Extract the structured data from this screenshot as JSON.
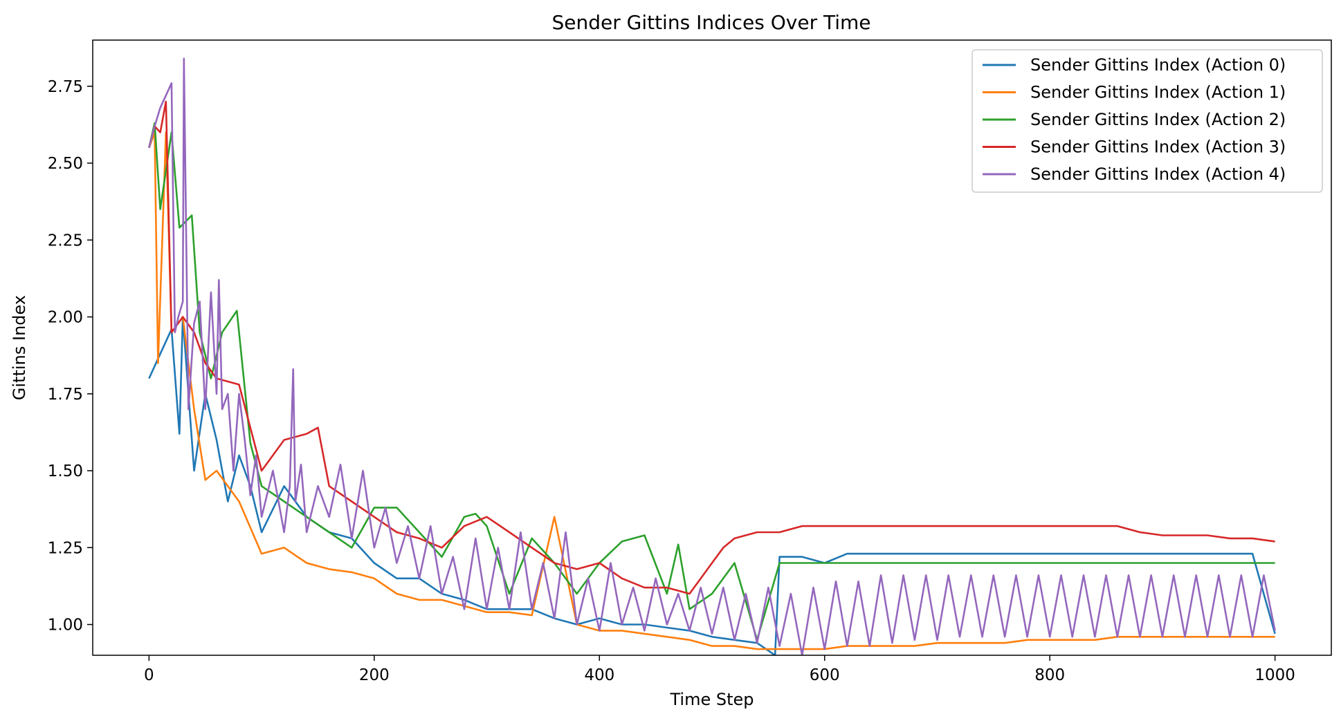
{
  "chart_data": {
    "type": "line",
    "title": "Sender Gittins Indices Over Time",
    "xlabel": "Time Step",
    "ylabel": "Gittins Index",
    "xlim": [
      -50,
      1050
    ],
    "ylim": [
      0.9,
      2.9
    ],
    "xticks": [
      0,
      200,
      400,
      600,
      800,
      1000
    ],
    "yticks": [
      1.0,
      1.25,
      1.5,
      1.75,
      2.0,
      2.25,
      2.5,
      2.75
    ],
    "xtick_labels": [
      "0",
      "200",
      "400",
      "600",
      "800",
      "1000"
    ],
    "ytick_labels": [
      "1.00",
      "1.25",
      "1.50",
      "1.75",
      "2.00",
      "2.25",
      "2.50",
      "2.75"
    ],
    "grid": false,
    "legend_position": "top-right",
    "series": [
      {
        "name": "Sender Gittins Index (Action 0)",
        "color": "#1f77b4",
        "x": [
          0,
          10,
          20,
          27,
          30,
          40,
          50,
          60,
          70,
          80,
          90,
          100,
          120,
          140,
          160,
          180,
          200,
          220,
          240,
          260,
          280,
          300,
          320,
          340,
          360,
          380,
          400,
          420,
          440,
          460,
          480,
          500,
          520,
          540,
          556,
          560,
          580,
          600,
          620,
          640,
          660,
          680,
          700,
          720,
          740,
          760,
          780,
          800,
          820,
          840,
          860,
          880,
          900,
          920,
          940,
          960,
          980,
          1000
        ],
        "y": [
          1.8,
          1.88,
          1.96,
          1.62,
          2.0,
          1.5,
          1.75,
          1.6,
          1.4,
          1.55,
          1.45,
          1.3,
          1.45,
          1.35,
          1.3,
          1.28,
          1.2,
          1.15,
          1.15,
          1.1,
          1.08,
          1.05,
          1.05,
          1.05,
          1.02,
          1.0,
          1.02,
          1.0,
          1.0,
          0.99,
          0.98,
          0.96,
          0.95,
          0.94,
          0.9,
          1.22,
          1.22,
          1.2,
          1.23,
          1.23,
          1.23,
          1.23,
          1.23,
          1.23,
          1.23,
          1.23,
          1.23,
          1.23,
          1.23,
          1.23,
          1.23,
          1.23,
          1.23,
          1.23,
          1.23,
          1.23,
          1.23,
          0.97
        ]
      },
      {
        "name": "Sender Gittins Index (Action 1)",
        "color": "#ff7f0e",
        "x": [
          0,
          5,
          8,
          15,
          20,
          30,
          40,
          50,
          60,
          80,
          100,
          120,
          140,
          160,
          180,
          200,
          220,
          240,
          260,
          280,
          300,
          320,
          340,
          360,
          380,
          400,
          420,
          440,
          460,
          480,
          500,
          520,
          540,
          560,
          580,
          600,
          620,
          640,
          660,
          680,
          700,
          720,
          740,
          760,
          780,
          800,
          820,
          840,
          860,
          880,
          900,
          920,
          940,
          960,
          980,
          1000
        ],
        "y": [
          2.55,
          2.6,
          1.85,
          2.6,
          1.95,
          2.0,
          1.7,
          1.47,
          1.5,
          1.4,
          1.23,
          1.25,
          1.2,
          1.18,
          1.17,
          1.15,
          1.1,
          1.08,
          1.08,
          1.06,
          1.04,
          1.04,
          1.03,
          1.35,
          1.0,
          0.98,
          0.98,
          0.97,
          0.96,
          0.95,
          0.93,
          0.93,
          0.92,
          0.92,
          0.92,
          0.92,
          0.93,
          0.93,
          0.93,
          0.93,
          0.94,
          0.94,
          0.94,
          0.94,
          0.95,
          0.95,
          0.95,
          0.95,
          0.96,
          0.96,
          0.96,
          0.96,
          0.96,
          0.96,
          0.96,
          0.96
        ]
      },
      {
        "name": "Sender Gittins Index (Action 2)",
        "color": "#2ca02c",
        "x": [
          0,
          5,
          10,
          20,
          27,
          38,
          45,
          55,
          65,
          78,
          90,
          100,
          120,
          140,
          160,
          180,
          200,
          220,
          240,
          260,
          280,
          290,
          300,
          320,
          340,
          360,
          380,
          400,
          420,
          440,
          460,
          470,
          480,
          500,
          520,
          540,
          560,
          580,
          600,
          620,
          640,
          660,
          680,
          700,
          720,
          740,
          760,
          780,
          800,
          820,
          840,
          860,
          880,
          900,
          920,
          940,
          960,
          980,
          1000
        ],
        "y": [
          2.55,
          2.63,
          2.35,
          2.6,
          2.29,
          2.33,
          1.95,
          1.8,
          1.95,
          2.02,
          1.59,
          1.45,
          1.4,
          1.35,
          1.3,
          1.25,
          1.38,
          1.38,
          1.3,
          1.22,
          1.35,
          1.36,
          1.32,
          1.1,
          1.28,
          1.2,
          1.1,
          1.2,
          1.27,
          1.29,
          1.1,
          1.26,
          1.05,
          1.1,
          1.2,
          0.95,
          1.2,
          1.2,
          1.2,
          1.2,
          1.2,
          1.2,
          1.2,
          1.2,
          1.2,
          1.2,
          1.2,
          1.2,
          1.2,
          1.2,
          1.2,
          1.2,
          1.2,
          1.2,
          1.2,
          1.2,
          1.2,
          1.2,
          1.2
        ]
      },
      {
        "name": "Sender Gittins Index (Action 3)",
        "color": "#d62728",
        "x": [
          0,
          5,
          10,
          15,
          20,
          30,
          40,
          50,
          60,
          80,
          100,
          120,
          140,
          150,
          160,
          180,
          200,
          220,
          240,
          260,
          280,
          300,
          320,
          340,
          360,
          380,
          400,
          420,
          440,
          460,
          480,
          500,
          510,
          520,
          540,
          560,
          580,
          600,
          620,
          640,
          660,
          680,
          700,
          720,
          740,
          760,
          780,
          800,
          820,
          840,
          860,
          880,
          900,
          920,
          940,
          960,
          980,
          1000
        ],
        "y": [
          2.55,
          2.62,
          2.6,
          2.7,
          1.95,
          2.0,
          1.95,
          1.85,
          1.8,
          1.78,
          1.5,
          1.6,
          1.62,
          1.64,
          1.45,
          1.4,
          1.35,
          1.3,
          1.28,
          1.25,
          1.32,
          1.35,
          1.3,
          1.25,
          1.2,
          1.18,
          1.2,
          1.15,
          1.12,
          1.12,
          1.1,
          1.2,
          1.25,
          1.28,
          1.3,
          1.3,
          1.32,
          1.32,
          1.32,
          1.32,
          1.32,
          1.32,
          1.32,
          1.32,
          1.32,
          1.32,
          1.32,
          1.32,
          1.32,
          1.32,
          1.32,
          1.3,
          1.29,
          1.29,
          1.29,
          1.28,
          1.28,
          1.27
        ]
      },
      {
        "name": "Sender Gittins Index (Action 4)",
        "color": "#9467bd",
        "x": [
          0,
          5,
          10,
          15,
          20,
          23,
          26,
          30,
          31,
          35,
          40,
          45,
          50,
          55,
          60,
          62,
          65,
          70,
          75,
          80,
          85,
          90,
          95,
          100,
          110,
          120,
          125,
          128,
          130,
          135,
          140,
          150,
          160,
          170,
          180,
          190,
          200,
          210,
          220,
          230,
          240,
          250,
          260,
          270,
          280,
          290,
          300,
          310,
          320,
          330,
          340,
          350,
          360,
          370,
          380,
          390,
          400,
          410,
          420,
          430,
          440,
          450,
          460,
          470,
          480,
          490,
          500,
          510,
          520,
          530,
          540,
          550,
          560,
          570,
          580,
          590,
          600,
          610,
          620,
          630,
          640,
          650,
          660,
          670,
          680,
          690,
          700,
          710,
          720,
          730,
          740,
          750,
          760,
          770,
          780,
          790,
          800,
          810,
          820,
          830,
          840,
          850,
          860,
          870,
          880,
          890,
          900,
          910,
          920,
          930,
          940,
          950,
          960,
          970,
          980,
          990,
          1000
        ],
        "y": [
          2.55,
          2.62,
          2.68,
          2.72,
          2.76,
          1.95,
          2.0,
          2.05,
          2.84,
          1.7,
          1.98,
          2.05,
          1.7,
          2.08,
          1.75,
          2.12,
          1.7,
          1.75,
          1.5,
          1.75,
          1.6,
          1.42,
          1.55,
          1.35,
          1.5,
          1.3,
          1.45,
          1.83,
          1.4,
          1.52,
          1.3,
          1.45,
          1.35,
          1.52,
          1.28,
          1.5,
          1.25,
          1.38,
          1.2,
          1.32,
          1.15,
          1.32,
          1.1,
          1.22,
          1.05,
          1.28,
          1.05,
          1.25,
          1.05,
          1.3,
          1.05,
          1.2,
          1.02,
          1.3,
          1.0,
          1.15,
          0.98,
          1.2,
          1.0,
          1.12,
          0.98,
          1.15,
          1.0,
          1.1,
          0.98,
          1.12,
          0.97,
          1.12,
          0.95,
          1.1,
          0.94,
          1.12,
          0.93,
          1.1,
          0.9,
          1.12,
          0.92,
          1.14,
          0.93,
          1.14,
          0.93,
          1.16,
          0.94,
          1.16,
          0.95,
          1.16,
          0.95,
          1.16,
          0.96,
          1.16,
          0.96,
          1.16,
          0.96,
          1.16,
          0.96,
          1.16,
          0.96,
          1.16,
          0.96,
          1.16,
          0.96,
          1.16,
          0.96,
          1.16,
          0.96,
          1.16,
          0.96,
          1.16,
          0.96,
          1.16,
          0.96,
          1.16,
          0.96,
          1.16,
          0.96,
          1.16,
          0.98
        ]
      }
    ]
  }
}
